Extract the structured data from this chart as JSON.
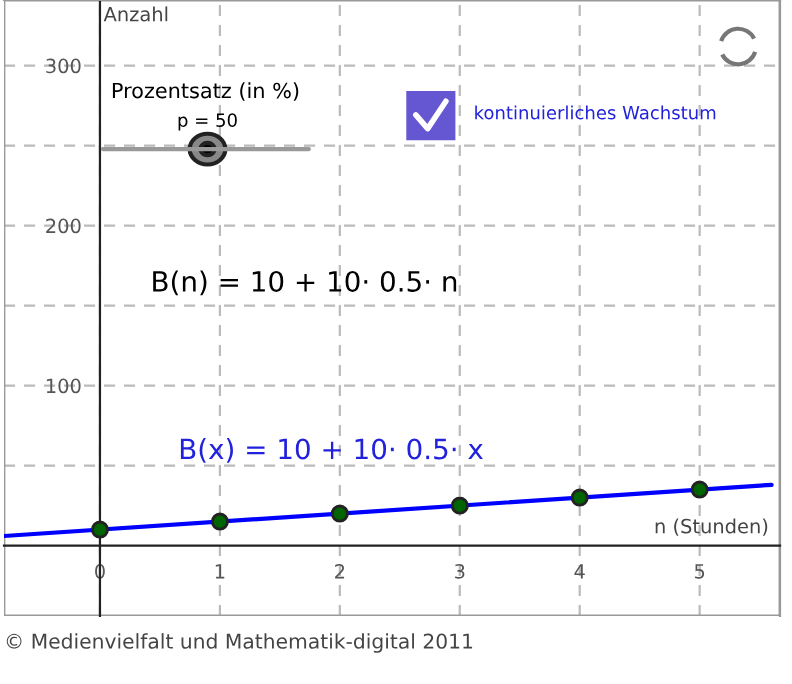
{
  "chart_data": {
    "type": "scatter",
    "xlabel": "n (Stunden)",
    "ylabel": "Anzahl",
    "x": [
      0,
      1,
      2,
      3,
      4,
      5
    ],
    "series": [
      {
        "color": "#006400",
        "values": [
          10,
          15,
          20,
          25,
          30,
          35
        ]
      },
      {
        "type": "line",
        "marker": "none",
        "color": "#0000ff",
        "x": [
          -0.8,
          5.6
        ],
        "values": [
          6,
          38
        ]
      }
    ],
    "xlim": [
      -0.8,
      5.67
    ],
    "ylim": [
      -44,
      341
    ],
    "xticks": [
      0,
      1,
      2,
      3,
      4,
      5
    ],
    "yticks": [
      {
        "value": 50,
        "label": null
      },
      100,
      {
        "value": 150,
        "label": null
      },
      200,
      {
        "value": 250,
        "label": null
      },
      300
    ],
    "grid": true,
    "marker": "circle",
    "legend": false,
    "annotations": [
      "Prozentsatz (in %)",
      "p = 50",
      "kontinuierliches Wachstum",
      "B(n) = 10 + 10· 0.5· n",
      "B(x) = 10 + 10· 0.5· x",
      "© Medienvielfalt und Mathematik-digital 2011"
    ]
  }
}
